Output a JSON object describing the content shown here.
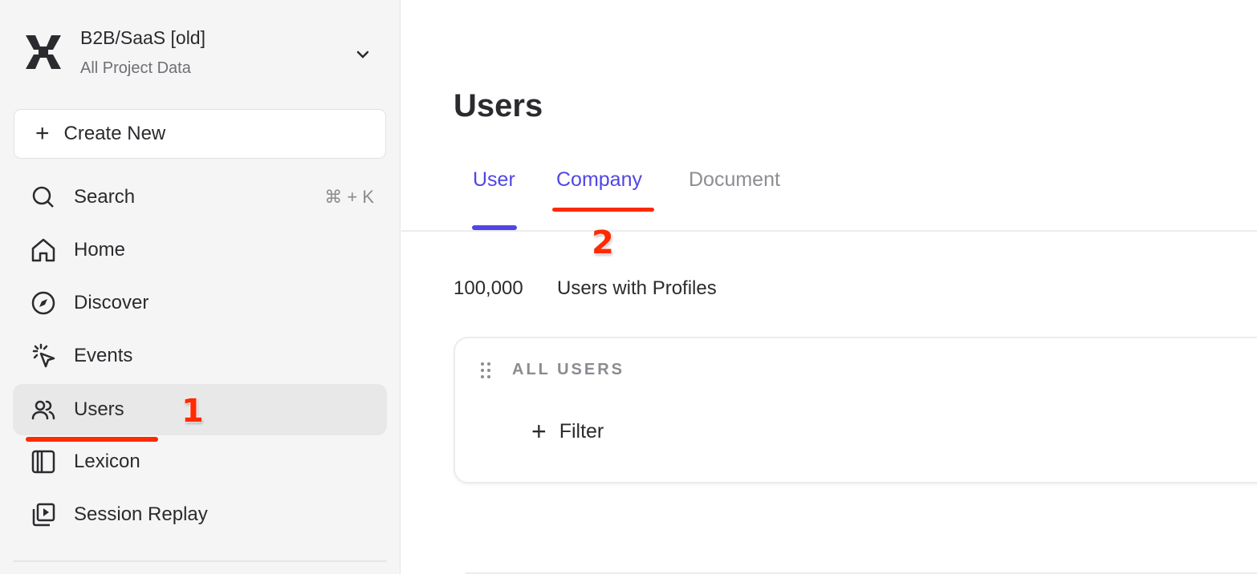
{
  "sidebar": {
    "project_title": "B2B/SaaS [old]",
    "project_subtitle": "All Project Data",
    "create_new": "Create New",
    "items": [
      {
        "label": "Search",
        "icon": "search-icon",
        "shortcut": "⌘ + K"
      },
      {
        "label": "Home",
        "icon": "home-icon"
      },
      {
        "label": "Discover",
        "icon": "compass-icon"
      },
      {
        "label": "Events",
        "icon": "cursor-click-icon"
      },
      {
        "label": "Users",
        "icon": "users-icon",
        "active": true
      },
      {
        "label": "Lexicon",
        "icon": "book-icon"
      },
      {
        "label": "Session Replay",
        "icon": "play-stack-icon"
      }
    ]
  },
  "main": {
    "title": "Users",
    "tabs": [
      {
        "label": "User",
        "selected": true
      },
      {
        "label": "Company"
      },
      {
        "label": "Document"
      }
    ],
    "count": "100,000",
    "count_label": "Users with Profiles",
    "card": {
      "title": "ALL USERS",
      "filter_label": "Filter"
    }
  },
  "annotations": {
    "step1": "1",
    "step2": "2",
    "color": "#ff2a00"
  },
  "colors": {
    "accent": "#5046e5",
    "sidebar_bg": "#f5f5f5"
  }
}
